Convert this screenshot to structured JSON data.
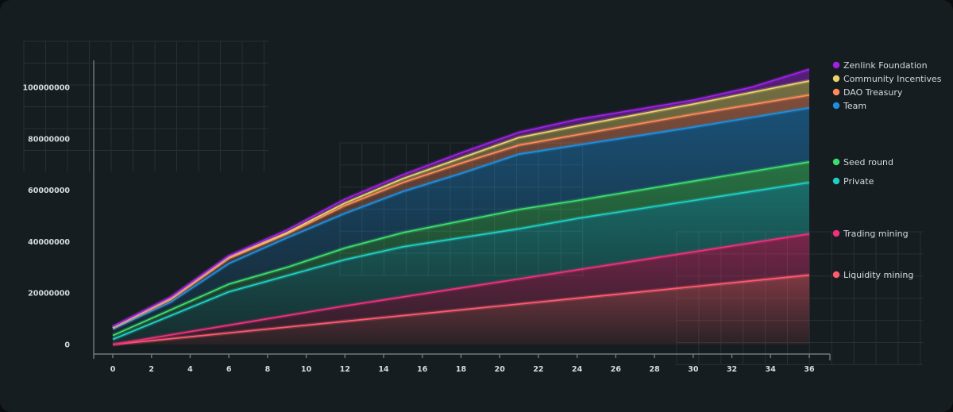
{
  "chart_data": {
    "type": "area",
    "title": "",
    "xlabel": "",
    "ylabel": "",
    "xlim": [
      0,
      36
    ],
    "ylim": [
      0,
      110000000
    ],
    "x_ticks": [
      0,
      2,
      4,
      6,
      8,
      10,
      12,
      14,
      16,
      18,
      20,
      22,
      24,
      26,
      28,
      30,
      32,
      34,
      36
    ],
    "y_ticks": [
      0,
      20000000,
      40000000,
      60000000,
      80000000,
      100000000
    ],
    "y_tick_labels": [
      "0",
      "20000000",
      "40000000",
      "60000000",
      "80000000",
      "100000000"
    ],
    "stacked": true,
    "legend_position": "right",
    "series": [
      {
        "name": "Liquidity mining",
        "color": "#ff5a6e",
        "points": [
          [
            0,
            0
          ],
          [
            6,
            4500000
          ],
          [
            12,
            9000000
          ],
          [
            18,
            13500000
          ],
          [
            24,
            18000000
          ],
          [
            30,
            22500000
          ],
          [
            36,
            27000000
          ]
        ]
      },
      {
        "name": "Trading mining",
        "color": "#f0307d",
        "points": [
          [
            0,
            0
          ],
          [
            6,
            7500000
          ],
          [
            12,
            15000000
          ],
          [
            18,
            22000000
          ],
          [
            24,
            29000000
          ],
          [
            30,
            36000000
          ],
          [
            36,
            43000000
          ]
        ]
      },
      {
        "name": "Private",
        "color": "#1ecfc4",
        "points": [
          [
            0,
            2000000
          ],
          [
            6,
            20500000
          ],
          [
            12,
            33000000
          ],
          [
            15,
            38000000
          ],
          [
            18,
            41500000
          ],
          [
            21,
            45000000
          ],
          [
            24,
            49000000
          ],
          [
            30,
            56000000
          ],
          [
            36,
            63000000
          ]
        ]
      },
      {
        "name": "Seed round",
        "color": "#3ddc6e",
        "points": [
          [
            0,
            3500000
          ],
          [
            6,
            23500000
          ],
          [
            9,
            30000000
          ],
          [
            12,
            37500000
          ],
          [
            15,
            43500000
          ],
          [
            18,
            48000000
          ],
          [
            21,
            52500000
          ],
          [
            24,
            56000000
          ],
          [
            30,
            63500000
          ],
          [
            36,
            71000000
          ]
        ]
      },
      {
        "name": "Team",
        "color": "#1e8fe0",
        "points": [
          [
            0,
            6000000
          ],
          [
            3,
            16500000
          ],
          [
            6,
            31500000
          ],
          [
            9,
            41500000
          ],
          [
            12,
            51000000
          ],
          [
            15,
            59500000
          ],
          [
            18,
            66500000
          ],
          [
            21,
            74000000
          ],
          [
            24,
            77500000
          ],
          [
            30,
            84500000
          ],
          [
            36,
            92000000
          ]
        ]
      },
      {
        "name": "DAO Treasury",
        "color": "#ff8a5c",
        "points": [
          [
            0,
            6500000
          ],
          [
            3,
            17500000
          ],
          [
            6,
            33500000
          ],
          [
            9,
            43000000
          ],
          [
            12,
            54000000
          ],
          [
            15,
            63000000
          ],
          [
            18,
            70500000
          ],
          [
            21,
            77500000
          ],
          [
            24,
            81500000
          ],
          [
            30,
            89500000
          ],
          [
            36,
            97000000
          ]
        ]
      },
      {
        "name": "Community Incentives",
        "color": "#e9d36a",
        "points": [
          [
            0,
            6500000
          ],
          [
            3,
            18000000
          ],
          [
            6,
            34000000
          ],
          [
            9,
            43500000
          ],
          [
            12,
            55000000
          ],
          [
            15,
            64500000
          ],
          [
            18,
            72500000
          ],
          [
            21,
            80500000
          ],
          [
            24,
            85000000
          ],
          [
            30,
            93500000
          ],
          [
            36,
            102500000
          ]
        ]
      },
      {
        "name": "Zenlink Foundation",
        "color": "#a020e6",
        "points": [
          [
            0,
            7000000
          ],
          [
            3,
            18500000
          ],
          [
            6,
            34500000
          ],
          [
            9,
            44500000
          ],
          [
            12,
            56500000
          ],
          [
            15,
            66000000
          ],
          [
            18,
            74500000
          ],
          [
            21,
            82500000
          ],
          [
            24,
            87500000
          ],
          [
            30,
            95000000
          ],
          [
            33,
            100000000
          ],
          [
            36,
            107000000
          ]
        ]
      }
    ]
  }
}
